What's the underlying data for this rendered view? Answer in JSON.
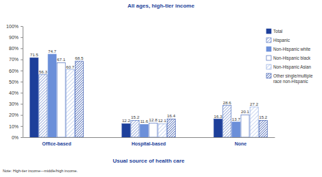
{
  "chart_data": {
    "type": "bar",
    "title": "All ages, high-tier income",
    "xlabel": "Usual source of health care",
    "annotations": [
      "Note: High-tier income—middle/high income."
    ],
    "categories": [
      "Office-based",
      "Hospital-based",
      "None"
    ],
    "series": [
      {
        "name": "Total",
        "color": "#1d3f9a",
        "values": [
          71.5,
          12.2,
          16.3
        ]
      },
      {
        "name": "Hispanic",
        "color": "#3d62b8",
        "values": [
          56.3,
          15.2,
          28.6
        ]
      },
      {
        "name": "Non-Hispanic white",
        "color": "#6b8fd9",
        "values": [
          74.7,
          11.6,
          13.7
        ]
      },
      {
        "name": "Non-Hispanic black",
        "color": "#2f55b0",
        "values": [
          67.1,
          12.8,
          20.1
        ]
      },
      {
        "name": "Non-Hispanic Asian",
        "color": "#7f9edd",
        "values": [
          60.7,
          12.1,
          27.2
        ]
      },
      {
        "name": "Other single/multiple race non-Hispanic",
        "color": "#2a4ca8",
        "values": [
          68.5,
          16.4,
          15.2
        ]
      }
    ],
    "ylim": [
      0,
      100
    ],
    "yticks": [
      {
        "value": 0,
        "label": "0%"
      },
      {
        "value": 10,
        "label": "10%"
      },
      {
        "value": 20,
        "label": "20%"
      },
      {
        "value": 30,
        "label": "30%"
      },
      {
        "value": 40,
        "label": "40%"
      },
      {
        "value": 50,
        "label": "50%"
      },
      {
        "value": 60,
        "label": "60%"
      },
      {
        "value": 70,
        "label": "70%"
      },
      {
        "value": 80,
        "label": "80%"
      },
      {
        "value": 90,
        "label": "90%"
      },
      {
        "value": 100,
        "label": "100%"
      }
    ],
    "grid": false,
    "legend": "upper right",
    "data_labels": true
  }
}
